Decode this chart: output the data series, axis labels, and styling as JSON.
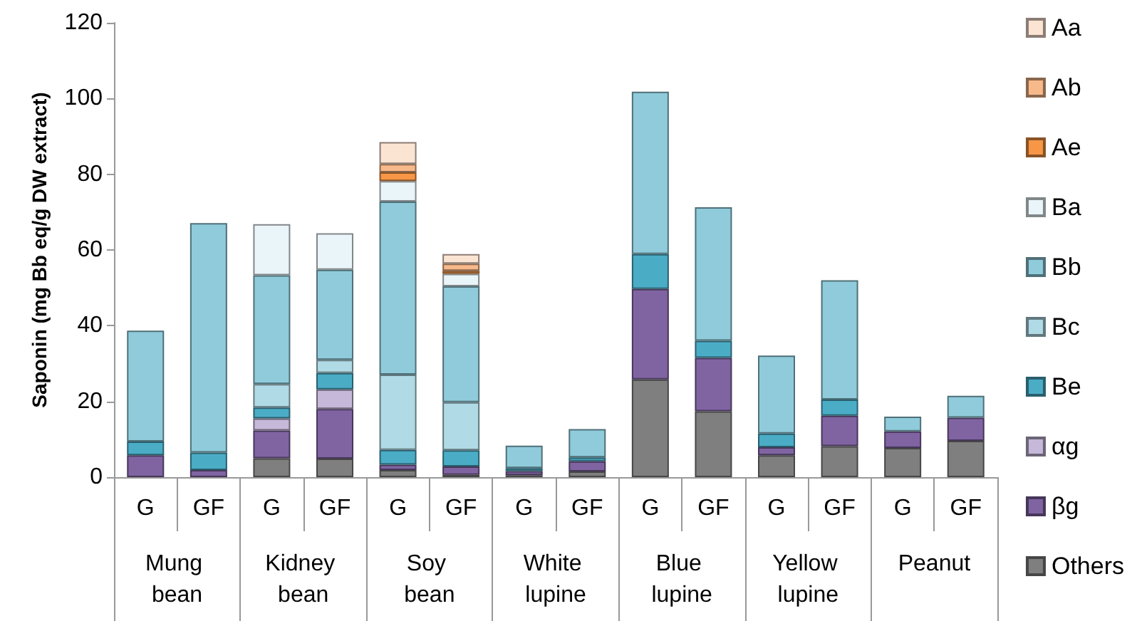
{
  "chart_data": {
    "type": "bar",
    "stacked": true,
    "ylabel": "Saponin (mg Bb eq/g DW extract)",
    "categories": [
      "G",
      "GF",
      "G",
      "GF",
      "G",
      "GF",
      "G",
      "GF",
      "G",
      "GF",
      "G",
      "GF",
      "G",
      "GF"
    ],
    "annotations": [
      "Mung bean",
      "Kidney bean",
      "Soy bean",
      "White lupine",
      "Blue lupine",
      "Yellow lupine",
      "Peanut"
    ],
    "series": [
      {
        "name": "Others",
        "color": "#7f7f7f",
        "values": [
          null,
          null,
          5.0,
          4.9,
          1.9,
          0.6,
          0.5,
          1.5,
          25.8,
          17.4,
          5.8,
          8.2,
          7.7,
          9.6
        ]
      },
      {
        "name": "βg",
        "color": "#8064a2",
        "values": [
          5.8,
          1.9,
          7.3,
          13.1,
          1.4,
          2.2,
          1.1,
          2.7,
          23.9,
          14.1,
          2.1,
          8.0,
          4.4,
          6.1
        ]
      },
      {
        "name": "αg",
        "color": "#c5b8d8",
        "values": [
          null,
          null,
          3.2,
          5.2,
          null,
          null,
          null,
          null,
          null,
          null,
          null,
          null,
          null,
          null
        ]
      },
      {
        "name": "Be",
        "color": "#4bacc6",
        "values": [
          3.6,
          4.6,
          2.9,
          4.3,
          3.9,
          4.3,
          0.8,
          1.0,
          9.2,
          4.5,
          3.6,
          4.3,
          null,
          null
        ]
      },
      {
        "name": "Bc",
        "color": "#b0dae5",
        "values": [
          null,
          null,
          6.2,
          3.5,
          19.9,
          12.7,
          null,
          null,
          null,
          null,
          null,
          null,
          null,
          null
        ]
      },
      {
        "name": "Bb",
        "color": "#8fcbdb",
        "values": [
          29.3,
          60.6,
          28.7,
          23.8,
          45.7,
          30.6,
          5.9,
          7.5,
          42.9,
          35.3,
          20.6,
          31.5,
          3.9,
          5.8
        ]
      },
      {
        "name": "Ba",
        "color": "#eaf5f9",
        "values": [
          null,
          null,
          13.5,
          9.6,
          5.4,
          3.3,
          null,
          null,
          null,
          null,
          null,
          null,
          null,
          null
        ]
      },
      {
        "name": "Ae",
        "color": "#f79646",
        "values": [
          null,
          null,
          null,
          null,
          2.3,
          0.8,
          null,
          null,
          null,
          null,
          null,
          null,
          null,
          null
        ]
      },
      {
        "name": "Ab",
        "color": "#f8b98a",
        "values": [
          null,
          null,
          null,
          null,
          2.2,
          1.9,
          null,
          null,
          null,
          null,
          null,
          null,
          null,
          null
        ]
      },
      {
        "name": "Aa",
        "color": "#fce4d3",
        "values": [
          null,
          null,
          null,
          null,
          5.8,
          2.5,
          null,
          null,
          null,
          null,
          null,
          null,
          null,
          null
        ]
      }
    ],
    "ylim": [
      0,
      120
    ],
    "yticks": [
      0,
      20,
      40,
      60,
      80,
      100,
      120
    ],
    "grid": false,
    "legend": "right"
  }
}
